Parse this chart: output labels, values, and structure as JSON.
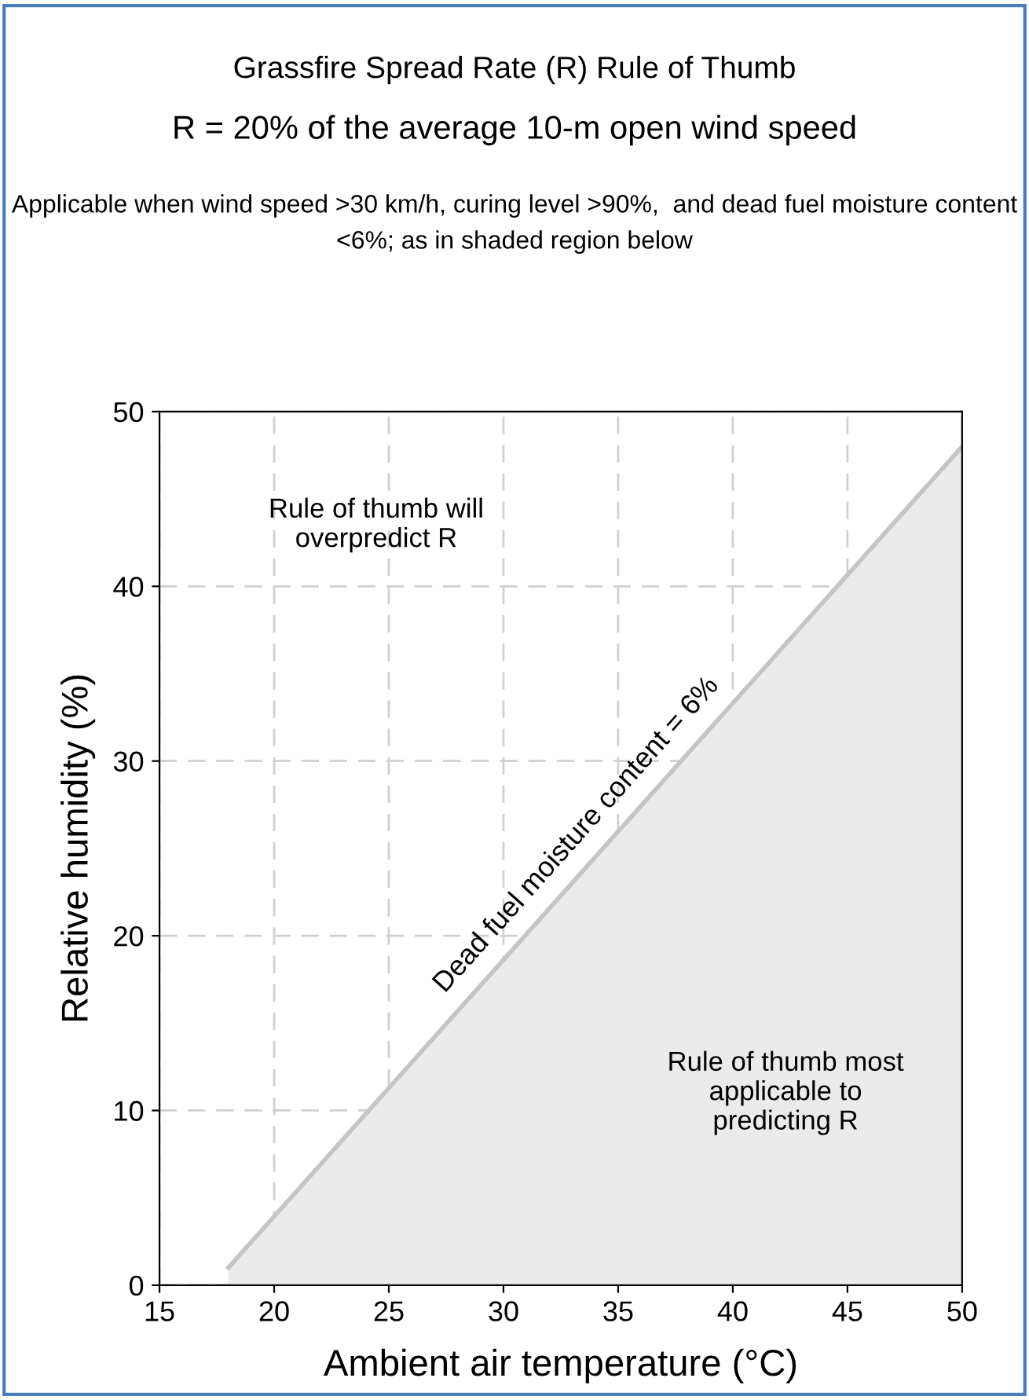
{
  "chart_data": {
    "type": "area",
    "title": "Grassfire Spread Rate (R) Rule of Thumb",
    "subtitle": "R = 20% of the average 10-m open wind speed",
    "xlabel": "Ambient air temperature (°C)",
    "ylabel": "Relative humidity (%)",
    "x": [
      18,
      50
    ],
    "series": [
      {
        "color": "#ebebeb",
        "values": [
          1,
          48
        ]
      }
    ],
    "xlim": [
      15,
      50
    ],
    "ylim": [
      0,
      50
    ],
    "xticks": [
      15,
      20,
      25,
      30,
      35,
      40,
      45,
      50
    ],
    "yticks": [
      0,
      10,
      20,
      30,
      40,
      50
    ],
    "grid": true,
    "legend": false,
    "annotations": [
      "Applicable when wind speed >30 km/h, curing level >90%,  and dead fuel moisture content <6%; as in shaded region below",
      {
        "text": "Dead fuel moisture content = 6%",
        "x": 34,
        "y": 24.5
      },
      "Rule of thumb will\noverpredict R",
      "Rule of thumb most\napplicable to\npredicting R"
    ]
  }
}
